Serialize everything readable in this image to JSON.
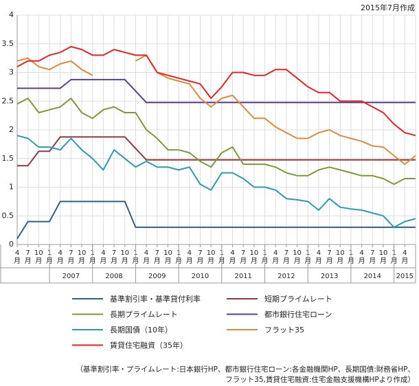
{
  "chart_data": {
    "type": "line",
    "subtitle": "2015年7月作成",
    "categories": [
      "4月",
      "7月",
      "10月",
      "1月",
      "4月",
      "7月",
      "10月",
      "1月",
      "4月",
      "7月",
      "10月",
      "1月",
      "4月",
      "7月",
      "10月",
      "1月",
      "4月",
      "7月",
      "10月",
      "1月",
      "4月",
      "7月",
      "10月",
      "1月",
      "4月",
      "7月",
      "10月",
      "1月",
      "4月",
      "7月",
      "10月",
      "1月",
      "4月",
      "7月",
      "10月",
      "1月",
      "4月",
      null
    ],
    "years": [
      "2007",
      "2008",
      "2009",
      "2010",
      "2011",
      "2012",
      "2013",
      "2014",
      "2015"
    ],
    "ylim": [
      0,
      4
    ],
    "yticks": [
      0,
      0.5,
      1,
      1.5,
      2,
      2.5,
      3,
      3.5,
      4
    ],
    "grid": true,
    "series": [
      {
        "name": "基準割引率・基準貸付利率",
        "color": "#2d5f8f",
        "values": [
          0.1,
          0.4,
          0.4,
          0.4,
          0.75,
          0.75,
          0.75,
          0.75,
          0.75,
          0.75,
          0.75,
          0.3,
          0.3,
          0.3,
          0.3,
          0.3,
          0.3,
          0.3,
          0.3,
          0.3,
          0.3,
          0.3,
          0.3,
          0.3,
          0.3,
          0.3,
          0.3,
          0.3,
          0.3,
          0.3,
          0.3,
          0.3,
          0.3,
          0.3,
          0.3,
          0.3,
          0.3,
          0.3
        ]
      },
      {
        "name": "短期プライムレート",
        "color": "#8c3b3b",
        "values": [
          1.375,
          1.375,
          1.625,
          1.625,
          1.875,
          1.875,
          1.875,
          1.875,
          1.875,
          1.875,
          1.875,
          1.675,
          1.475,
          1.475,
          1.475,
          1.475,
          1.475,
          1.475,
          1.475,
          1.475,
          1.475,
          1.475,
          1.475,
          1.475,
          1.475,
          1.475,
          1.475,
          1.475,
          1.475,
          1.475,
          1.475,
          1.475,
          1.475,
          1.475,
          1.475,
          1.475,
          1.475,
          1.475
        ]
      },
      {
        "name": "長期プライムレート",
        "color": "#7b9a35",
        "values": [
          2.45,
          2.55,
          2.3,
          2.35,
          2.4,
          2.55,
          2.3,
          2.2,
          2.35,
          2.4,
          2.3,
          2.3,
          2.0,
          1.85,
          1.65,
          1.65,
          1.6,
          1.45,
          1.35,
          1.6,
          1.7,
          1.4,
          1.4,
          1.4,
          1.35,
          1.25,
          1.2,
          1.2,
          1.3,
          1.35,
          1.3,
          1.25,
          1.2,
          1.2,
          1.15,
          1.05,
          1.15,
          1.15
        ]
      },
      {
        "name": "都市銀行住宅ローン",
        "color": "#5b3f8e",
        "values": [
          2.725,
          2.725,
          2.725,
          2.725,
          2.725,
          2.875,
          2.875,
          2.875,
          2.875,
          2.875,
          2.875,
          2.675,
          2.475,
          2.475,
          2.475,
          2.475,
          2.475,
          2.475,
          2.475,
          2.475,
          2.475,
          2.475,
          2.475,
          2.475,
          2.475,
          2.475,
          2.475,
          2.475,
          2.475,
          2.475,
          2.475,
          2.475,
          2.475,
          2.475,
          2.475,
          2.475,
          2.475,
          2.475
        ]
      },
      {
        "name": "長期国債（10年）",
        "color": "#2a9bb0",
        "values": [
          1.9,
          1.85,
          1.7,
          1.7,
          1.65,
          1.85,
          1.65,
          1.5,
          1.3,
          1.65,
          1.5,
          1.35,
          1.45,
          1.35,
          1.35,
          1.3,
          1.35,
          1.05,
          0.95,
          1.25,
          1.25,
          1.15,
          1.0,
          1.0,
          0.95,
          0.8,
          0.78,
          0.75,
          0.6,
          0.8,
          0.65,
          0.62,
          0.6,
          0.55,
          0.5,
          0.3,
          0.4,
          0.45
        ]
      },
      {
        "name": "フラット35",
        "color": "#e08a3a",
        "values": [
          3.2,
          3.25,
          3.1,
          3.05,
          3.15,
          3.2,
          3.05,
          2.95,
          null,
          null,
          null,
          3.2,
          3.3,
          3.0,
          2.9,
          2.85,
          2.8,
          2.55,
          2.4,
          2.55,
          2.6,
          2.4,
          2.2,
          2.2,
          2.05,
          1.95,
          1.85,
          1.85,
          1.95,
          2.0,
          1.9,
          1.85,
          1.8,
          1.72,
          1.7,
          1.55,
          1.4,
          1.55
        ]
      },
      {
        "name": "賃貸住宅融資（35年）",
        "color": "#e82222",
        "values": [
          3.1,
          3.2,
          3.2,
          3.3,
          3.35,
          3.45,
          3.4,
          3.3,
          3.3,
          3.4,
          3.35,
          3.3,
          3.3,
          3.0,
          2.95,
          2.9,
          2.85,
          2.8,
          2.55,
          2.75,
          3.0,
          3.0,
          2.95,
          2.95,
          3.05,
          3.05,
          2.9,
          2.75,
          2.65,
          2.65,
          2.5,
          2.5,
          2.5,
          2.4,
          2.3,
          2.1,
          1.95,
          1.9
        ]
      }
    ],
    "note": [
      "（基準割引率・プライムレート:日本銀行HP、都市銀行住宅ローン:各金融機関HP、長期国債:財務省HP、",
      "フラット35,賃貸住宅融資:住宅金融支援機構HPより作成）"
    ]
  }
}
